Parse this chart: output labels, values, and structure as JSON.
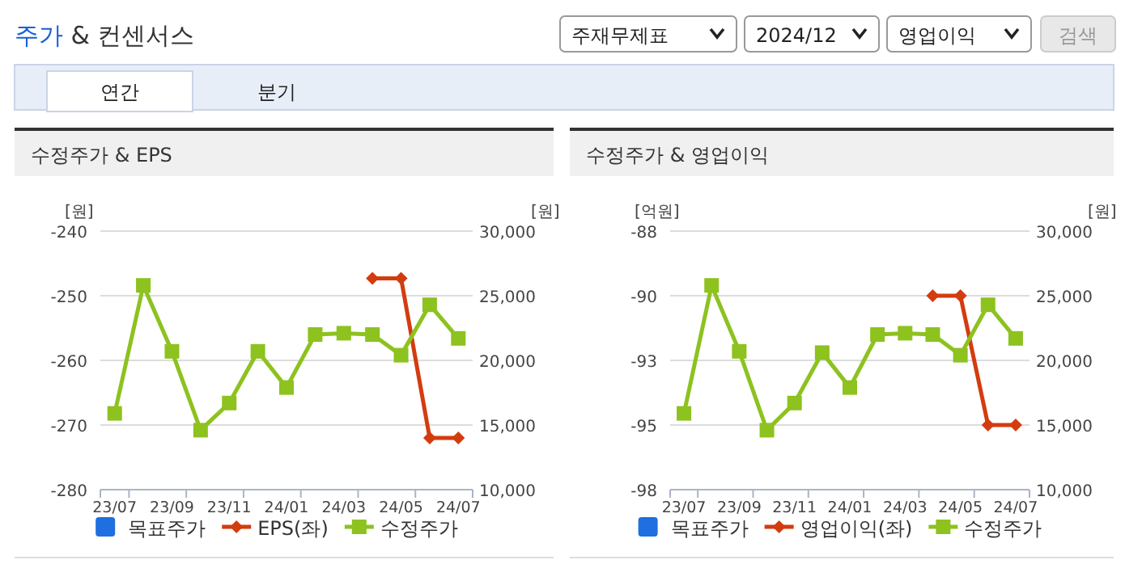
{
  "chart_data": [
    {
      "type": "other",
      "title": "주가 & 컨센서스",
      "annotations": [
        "주재무제표",
        "2024/12",
        "영업이익",
        "검색",
        "연간",
        "분기"
      ]
    },
    {
      "type": "line",
      "title": "수정주가 & EPS",
      "ylabel": "[원]",
      "y2label": "[원]",
      "legend": "bottom",
      "grid": "y",
      "categories": [
        "23/07",
        null,
        "23/09",
        null,
        "23/11",
        null,
        "24/01",
        null,
        "24/03",
        null,
        "24/05",
        null,
        "24/07"
      ],
      "ylim": [
        -280,
        -240
      ],
      "yticks": [
        -280,
        -270,
        -260,
        -250,
        -240
      ],
      "y2lim": [
        10000,
        30000
      ],
      "y2ticks": [
        {
          "value": 10000,
          "label": "10,000"
        },
        {
          "value": 15000,
          "label": "15,000"
        },
        {
          "value": 20000,
          "label": "20,000"
        },
        {
          "value": 25000,
          "label": "25,000"
        },
        {
          "value": 30000,
          "label": "30,000"
        }
      ],
      "series": [
        {
          "name": "목표주가",
          "type": "bar",
          "color": "#1f6fe0",
          "values": [
            null,
            null,
            null,
            null,
            null,
            null,
            null,
            null,
            null,
            null,
            null,
            null,
            null
          ]
        },
        {
          "name": "EPS(좌)",
          "type": "line",
          "marker": "diamond",
          "color": "#d33c0f",
          "values": [
            null,
            null,
            null,
            null,
            null,
            null,
            null,
            null,
            null,
            -247.3,
            -247.3,
            -272,
            -272
          ]
        },
        {
          "name": "수정주가",
          "type": "line",
          "marker": "square",
          "axis": "y2",
          "color": "#8dc21f",
          "values": [
            15900,
            25800,
            20700,
            14600,
            16700,
            20700,
            17900,
            22000,
            22100,
            22000,
            20400,
            24300,
            21700
          ]
        }
      ]
    },
    {
      "type": "line",
      "title": "수정주가 & 영업이익",
      "ylabel": "[억원]",
      "y2label": "[원]",
      "legend": "bottom",
      "grid": "y",
      "categories": [
        "23/07",
        null,
        "23/09",
        null,
        "23/11",
        null,
        "24/01",
        null,
        "24/03",
        null,
        "24/05",
        null,
        "24/07"
      ],
      "ylim": [
        -98,
        -88
      ],
      "yticks": [
        -98,
        {
          "value": -95.5,
          "label": "-95"
        },
        -93,
        {
          "value": -90.5,
          "label": "-90"
        },
        -88
      ],
      "y2lim": [
        10000,
        30000
      ],
      "y2ticks": [
        {
          "value": 10000,
          "label": "10,000"
        },
        {
          "value": 15000,
          "label": "15,000"
        },
        {
          "value": 20000,
          "label": "20,000"
        },
        {
          "value": 25000,
          "label": "25,000"
        },
        {
          "value": 30000,
          "label": "30,000"
        }
      ],
      "series": [
        {
          "name": "목표주가",
          "type": "bar",
          "color": "#1f6fe0",
          "values": [
            null,
            null,
            null,
            null,
            null,
            null,
            null,
            null,
            null,
            null,
            null,
            null,
            null
          ]
        },
        {
          "name": "영업이익(좌)",
          "type": "line",
          "marker": "diamond",
          "color": "#d33c0f",
          "values": [
            null,
            null,
            null,
            null,
            null,
            null,
            null,
            null,
            null,
            -90.5,
            -90.5,
            -95.5,
            -95.5
          ]
        },
        {
          "name": "수정주가",
          "type": "line",
          "marker": "square",
          "axis": "y2",
          "color": "#8dc21f",
          "values": [
            15900,
            25800,
            20700,
            14600,
            16700,
            20600,
            17900,
            22000,
            22100,
            22000,
            20400,
            24300,
            21700
          ]
        }
      ]
    }
  ]
}
